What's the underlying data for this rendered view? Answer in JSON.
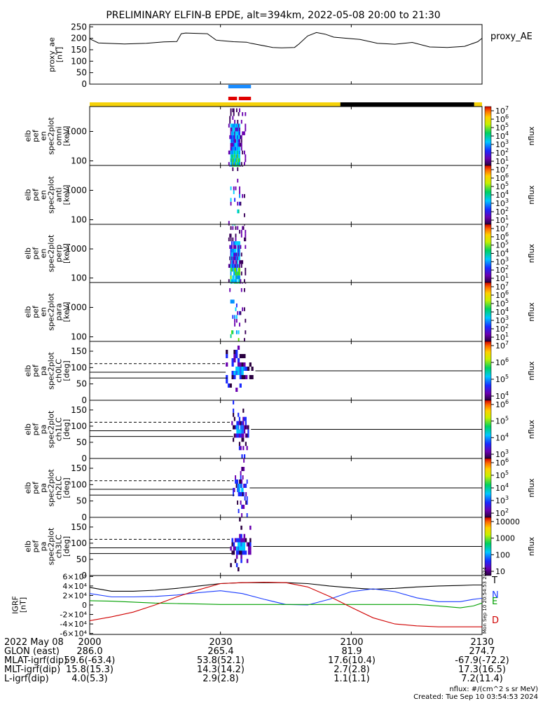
{
  "title": "PRELIMINARY ELFIN-B EPDE, alt=394km, 2022-05-08 20:00 to 21:30",
  "chart_data": {
    "type": "spectrogram",
    "title": "PRELIMINARY ELFIN-B EPDE, alt=394km, 2022-05-08 20:00 to 21:30",
    "time_range_minutes": [
      0,
      90
    ],
    "time_ticks": [
      {
        "t": 0,
        "label": "2000"
      },
      {
        "t": 30,
        "label": "2030"
      },
      {
        "t": 60,
        "label": "2100"
      },
      {
        "t": 90,
        "label": "2130"
      }
    ],
    "proxy_ae": {
      "ylabel_lines": [
        "proxy_ae",
        "[nT]"
      ],
      "legend": "proxy_AE",
      "ylim": [
        0,
        260
      ],
      "yticks": [
        "250",
        "200",
        "150",
        "100",
        "50",
        "0"
      ],
      "t": [
        0,
        2,
        8,
        13,
        17,
        20,
        21,
        22,
        27,
        29,
        30,
        33,
        36,
        37,
        42,
        44,
        47,
        48,
        50,
        52,
        54,
        56,
        62,
        66,
        70,
        74,
        78,
        82,
        86,
        89,
        90
      ],
      "values": [
        198,
        180,
        175,
        178,
        184,
        186,
        220,
        223,
        220,
        192,
        190,
        185,
        183,
        178,
        160,
        158,
        160,
        175,
        210,
        225,
        218,
        205,
        195,
        178,
        174,
        182,
        162,
        160,
        165,
        185,
        200
      ]
    },
    "orbit_bars": {
      "science_zone_blue": [
        [
          31.8,
          37.0
        ]
      ],
      "science_zone_red": [
        [
          31.8,
          33.8
        ],
        [
          34.2,
          37.0
        ]
      ],
      "status_segments": [
        {
          "from": 0,
          "to": 57.5,
          "color": "#f5d20a"
        },
        {
          "from": 57.5,
          "to": 88.2,
          "color": "#000000"
        },
        {
          "from": 88.2,
          "to": 90,
          "color": "#f5d20a"
        }
      ]
    },
    "energy_panels": [
      {
        "id": "omni",
        "ylabel_lines": [
          "elb",
          "pef",
          "en",
          "spec2plot",
          "omni",
          "[keV]"
        ],
        "yticks": [
          "1000",
          "100"
        ],
        "colorbar_max_exp": "7",
        "density": 1.0,
        "t_start": 31.8,
        "t_end": 35.8
      },
      {
        "id": "anti",
        "ylabel_lines": [
          "elb",
          "pef",
          "en",
          "spec2plot",
          "anti",
          "[keV]"
        ],
        "yticks": [
          "1000",
          "100"
        ],
        "colorbar_max_exp": "7",
        "density": 0.18,
        "t_start": 31.8,
        "t_end": 35.8
      },
      {
        "id": "perp",
        "ylabel_lines": [
          "elb",
          "pef",
          "en",
          "spec2plot",
          "perp",
          "[keV]"
        ],
        "yticks": [
          "1000",
          "100"
        ],
        "colorbar_max_exp": "7",
        "density": 0.9,
        "t_start": 31.8,
        "t_end": 35.8
      },
      {
        "id": "para",
        "ylabel_lines": [
          "elb",
          "pef",
          "en",
          "spec2plot",
          "para",
          "[keV]"
        ],
        "yticks": [
          "1000",
          "100"
        ],
        "colorbar_max_exp": "7",
        "density": 0.22,
        "t_start": 31.8,
        "t_end": 35.8
      }
    ],
    "energy_colorbar_exps": [
      "7",
      "6",
      "5",
      "4",
      "3",
      "2",
      "1"
    ],
    "pitch_panels": [
      {
        "id": "ch0LC",
        "ylabel_lines": [
          "elb",
          "pef",
          "pa",
          "spec2plot",
          "ch0LC",
          "[deg]"
        ],
        "yticks": [
          "150",
          "100",
          "50",
          "0"
        ],
        "dashed_deg": 112,
        "solid_upper_deg": 90,
        "solid_lower_deg": 68,
        "t_start": 31.2,
        "t_end": 37.5,
        "colorbar": [
          "10^{7}",
          "10^{6}",
          "10^{5}",
          "10^{4}"
        ]
      },
      {
        "id": "ch1LC",
        "ylabel_lines": [
          "elb",
          "pef",
          "pa",
          "spec2plot",
          "ch1LC",
          "[deg]"
        ],
        "yticks": [
          "150",
          "100",
          "50",
          "0"
        ],
        "dashed_deg": 112,
        "solid_upper_deg": 90,
        "solid_lower_deg": 68,
        "t_start": 32.5,
        "t_end": 36.5,
        "colorbar": [
          "10^{6}",
          "10^{5}",
          "10^{4}",
          "10^{3}"
        ]
      },
      {
        "id": "ch2LC",
        "ylabel_lines": [
          "elb",
          "pef",
          "pa",
          "spec2plot",
          "ch2LC",
          "[deg]"
        ],
        "yticks": [
          "150",
          "100",
          "50",
          "0"
        ],
        "dashed_deg": 112,
        "solid_upper_deg": 90,
        "solid_lower_deg": 68,
        "t_start": 32.8,
        "t_end": 36.2,
        "colorbar": [
          "10^{6}",
          "10^{5}",
          "10^{4}",
          "10^{3}",
          "10^{2}"
        ]
      },
      {
        "id": "ch3LC",
        "ylabel_lines": [
          "elb",
          "pef",
          "pa",
          "spec2plot",
          "ch3LC",
          "[deg]"
        ],
        "yticks": [
          "150",
          "100",
          "50",
          "0"
        ],
        "dashed_deg": 112,
        "solid_upper_deg": 90,
        "solid_lower_deg": 68,
        "t_start": 32.2,
        "t_end": 37.0,
        "colorbar": [
          "10000",
          "1000",
          "100",
          "10"
        ]
      }
    ],
    "colorbar_label": "nflux",
    "igrf": {
      "ylabel_lines": [
        "IGRF",
        "[nT]"
      ],
      "yticks": [
        "6×10⁴",
        "4×10⁴",
        "2×10⁴",
        "0",
        "-2×10⁴",
        "-4×10⁴",
        "-6×10⁴"
      ],
      "ylim": [
        -62000,
        62000
      ],
      "t": [
        0,
        5,
        10,
        15,
        20,
        25,
        30,
        35,
        40,
        45,
        50,
        55,
        60,
        65,
        70,
        75,
        80,
        85,
        88,
        90
      ],
      "series": [
        {
          "name": "T",
          "color": "#000000",
          "values": [
            37000,
            29000,
            29000,
            31000,
            35000,
            40000,
            45000,
            47000,
            47000,
            47000,
            45000,
            40000,
            36000,
            33000,
            35000,
            38000,
            40000,
            41000,
            42000,
            42000
          ]
        },
        {
          "name": "N",
          "color": "#1a3cff",
          "values": [
            24000,
            17000,
            17000,
            18000,
            21000,
            26000,
            30000,
            24000,
            12000,
            1000,
            0,
            12000,
            28000,
            34000,
            28000,
            15000,
            7000,
            7000,
            12000,
            14000
          ]
        },
        {
          "name": "E",
          "color": "#00a000",
          "values": [
            9000,
            8000,
            6000,
            4000,
            3000,
            2000,
            1000,
            1000,
            1000,
            1000,
            1000,
            1000,
            1000,
            1000,
            1000,
            1000,
            -2000,
            -6000,
            -2000,
            4000
          ]
        },
        {
          "name": "D",
          "color": "#d00000",
          "values": [
            -33000,
            -25000,
            -15000,
            0,
            17000,
            32000,
            45000,
            47000,
            48000,
            47000,
            38000,
            18000,
            -5000,
            -27000,
            -40000,
            -44000,
            -46000,
            -46000,
            -46000,
            -46000
          ]
        }
      ],
      "label_colors": {
        "T": "#000000",
        "N": "#1a3cff",
        "E": "#00a000",
        "D": "#d00000"
      }
    }
  },
  "ephemeris": {
    "rows": [
      {
        "label": "2022 May 08",
        "values": [
          "2000",
          "2030",
          "2100",
          "2130"
        ]
      },
      {
        "label": "GLON (east)",
        "values": [
          "286.0",
          "265.4",
          "81.9",
          "274.7"
        ]
      },
      {
        "label": "MLAT-igrf(dip)",
        "values": [
          "59.6(-63.4)",
          "53.8(52.1)",
          "17.6(10.4)",
          "-67.9(-72.2)"
        ]
      },
      {
        "label": "MLT-igrf(dip)",
        "values": [
          "15.8(15.3)",
          "14.3(14.2)",
          "2.7(2.8)",
          "17.3(16.5)"
        ]
      },
      {
        "label": "L-igrf(dip)",
        "values": [
          "4.0(5.3)",
          "2.9(2.8)",
          "1.1(1.1)",
          "7.2(11.4)"
        ]
      }
    ]
  },
  "footer": {
    "units": "nflux: #/(cm^2 s sr MeV)",
    "created": "Created: Tue Sep 10 03:54:53 2024",
    "stamp": "Mon Sep 10 20:54:53 2024"
  }
}
